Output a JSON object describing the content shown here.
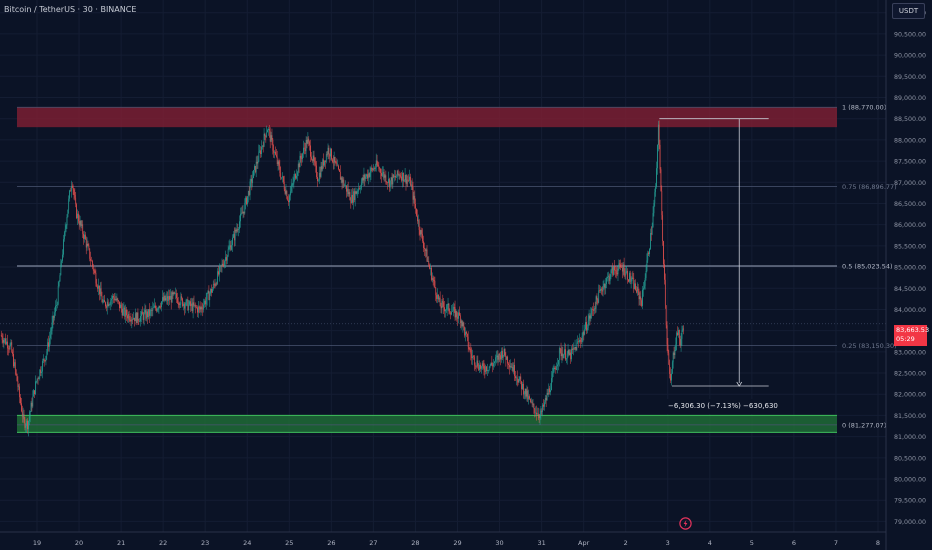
{
  "header": {
    "title": "Bitcoin / TetherUS · 30 · BINANCE",
    "currency_button": "USDT"
  },
  "price_tag": {
    "price": "83,663.53",
    "countdown": "05:29"
  },
  "measure": {
    "label": "−6,306.30 (−7.13%) −630,630",
    "from": 88500,
    "to": 82194
  },
  "colors": {
    "background": "#0b1326",
    "resistance_zone": "#7a1f33",
    "support_zone": "#1e6b36",
    "candle_up": "#26a69a",
    "candle_down": "#ef5350",
    "price_tag": "#f23645"
  },
  "chart_data": {
    "type": "candlestick",
    "symbol": "BTCUSDT",
    "interval": "30",
    "exchange": "BINANCE",
    "ylim": [
      78750,
      91300
    ],
    "y_ticks": [
      79000,
      79500,
      80000,
      80500,
      81000,
      81500,
      82000,
      82500,
      83000,
      83500,
      84000,
      84500,
      85000,
      85500,
      86000,
      86500,
      87000,
      87500,
      88000,
      88500,
      89000,
      89500,
      90000,
      90500,
      91000
    ],
    "x_ticks": [
      {
        "label": "19",
        "day": 0
      },
      {
        "label": "20",
        "day": 1
      },
      {
        "label": "21",
        "day": 2
      },
      {
        "label": "22",
        "day": 3
      },
      {
        "label": "23",
        "day": 4
      },
      {
        "label": "24",
        "day": 5
      },
      {
        "label": "25",
        "day": 6
      },
      {
        "label": "26",
        "day": 7
      },
      {
        "label": "27",
        "day": 8
      },
      {
        "label": "28",
        "day": 9
      },
      {
        "label": "29",
        "day": 10
      },
      {
        "label": "30",
        "day": 11
      },
      {
        "label": "31",
        "day": 12
      },
      {
        "label": "Apr",
        "day": 13
      },
      {
        "label": "2",
        "day": 14
      },
      {
        "label": "3",
        "day": 15
      },
      {
        "label": "4",
        "day": 16
      },
      {
        "label": "5",
        "day": 17
      },
      {
        "label": "6",
        "day": 18
      },
      {
        "label": "7",
        "day": 19
      },
      {
        "label": "8",
        "day": 20
      }
    ],
    "xlim": [
      -0.85,
      20.2
    ],
    "last_day": 15.4,
    "price_path": [
      [
        -0.85,
        83400
      ],
      [
        -0.6,
        83100
      ],
      [
        -0.45,
        82300
      ],
      [
        -0.3,
        81350
      ],
      [
        -0.2,
        81300
      ],
      [
        0.0,
        82300
      ],
      [
        0.25,
        83000
      ],
      [
        0.5,
        84200
      ],
      [
        0.7,
        86000
      ],
      [
        0.85,
        87100
      ],
      [
        0.95,
        86300
      ],
      [
        1.15,
        85700
      ],
      [
        1.35,
        85000
      ],
      [
        1.6,
        84100
      ],
      [
        1.85,
        84300
      ],
      [
        2.1,
        83900
      ],
      [
        2.4,
        83800
      ],
      [
        2.7,
        83900
      ],
      [
        3.0,
        84200
      ],
      [
        3.3,
        84300
      ],
      [
        3.6,
        84100
      ],
      [
        3.9,
        84000
      ],
      [
        4.2,
        84500
      ],
      [
        4.45,
        85100
      ],
      [
        4.7,
        85700
      ],
      [
        4.95,
        86400
      ],
      [
        5.2,
        87300
      ],
      [
        5.5,
        88300
      ],
      [
        5.75,
        87400
      ],
      [
        6.0,
        86600
      ],
      [
        6.2,
        87300
      ],
      [
        6.45,
        88000
      ],
      [
        6.7,
        87100
      ],
      [
        6.95,
        87800
      ],
      [
        7.2,
        87200
      ],
      [
        7.5,
        86600
      ],
      [
        7.8,
        87100
      ],
      [
        8.1,
        87400
      ],
      [
        8.4,
        87000
      ],
      [
        8.65,
        87200
      ],
      [
        8.9,
        87000
      ],
      [
        9.1,
        86000
      ],
      [
        9.35,
        85000
      ],
      [
        9.6,
        84100
      ],
      [
        9.85,
        84000
      ],
      [
        10.1,
        83800
      ],
      [
        10.35,
        82900
      ],
      [
        10.6,
        82600
      ],
      [
        10.85,
        82700
      ],
      [
        11.1,
        83000
      ],
      [
        11.35,
        82600
      ],
      [
        11.6,
        82100
      ],
      [
        11.8,
        81700
      ],
      [
        12.0,
        81500
      ],
      [
        12.2,
        82100
      ],
      [
        12.45,
        83000
      ],
      [
        12.7,
        82900
      ],
      [
        12.95,
        83300
      ],
      [
        13.2,
        83900
      ],
      [
        13.45,
        84500
      ],
      [
        13.7,
        84900
      ],
      [
        13.95,
        85000
      ],
      [
        14.2,
        84600
      ],
      [
        14.4,
        84200
      ],
      [
        14.65,
        86000
      ],
      [
        14.75,
        87100
      ],
      [
        14.8,
        88500
      ],
      [
        14.85,
        86900
      ],
      [
        14.92,
        85200
      ],
      [
        15.0,
        83300
      ],
      [
        15.08,
        82200
      ],
      [
        15.15,
        82900
      ],
      [
        15.25,
        83500
      ],
      [
        15.32,
        83200
      ],
      [
        15.4,
        83663
      ]
    ]
  },
  "annotations": {
    "resistance_zone": {
      "top": 88770,
      "bottom": 88300
    },
    "support_zone": {
      "top": 81500,
      "bottom": 81100
    },
    "fib_levels": [
      {
        "label": "1 (88,770.00)",
        "price": 88770
      },
      {
        "label": "0.75 (86,896.77)",
        "price": 86896.77
      },
      {
        "label": "0.5 (85,023.54)",
        "price": 85023.54
      },
      {
        "label": "0.25 (83,150.30)",
        "price": 83150.3
      },
      {
        "label": "0 (81,277.07)",
        "price": 81277.07
      }
    ]
  }
}
